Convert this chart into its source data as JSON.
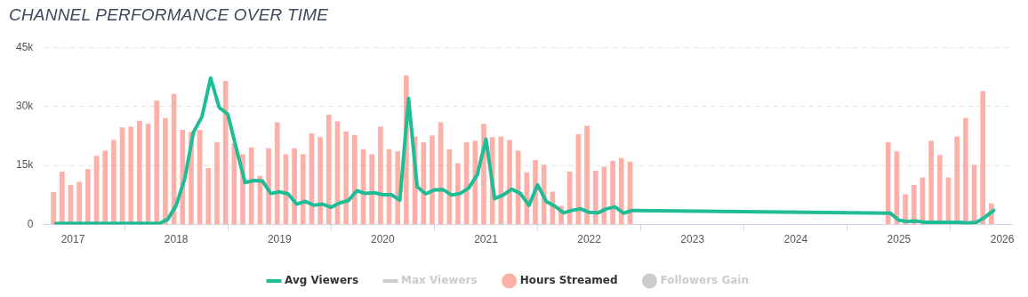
{
  "chart_data": {
    "type": "bar",
    "title": "CHANNEL PERFORMANCE OVER TIME",
    "xlim": [
      "2016-09-20",
      "2026-02-05"
    ],
    "xticks": [
      "2017",
      "2018",
      "2019",
      "2020",
      "2021",
      "2022",
      "2023",
      "2024",
      "2025",
      "2026"
    ],
    "ylim": [
      0,
      45000
    ],
    "yticks": [
      0,
      {
        "value": 15000,
        "label": "15k"
      },
      {
        "value": 30000,
        "label": "30k"
      },
      {
        "value": 45000,
        "label": "45k"
      }
    ],
    "grid": "y",
    "legend": "bottom",
    "marker": "none",
    "line_style": "solid",
    "series": [
      {
        "name": "Avg Viewers",
        "type": "line",
        "color": "#1fbc95",
        "x": [
          "2016-11",
          "2016-12",
          "2017-01",
          "2017-02",
          "2017-03",
          "2017-04",
          "2017-05",
          "2017-06",
          "2017-07",
          "2017-08",
          "2017-09",
          "2017-10",
          "2017-11",
          "2017-12",
          "2018-01",
          "2018-02",
          "2018-03",
          "2018-04",
          "2018-05",
          "2018-06",
          "2018-07",
          "2018-08",
          "2018-09",
          "2018-10",
          "2018-11",
          "2018-12",
          "2019-01",
          "2019-02",
          "2019-03",
          "2019-04",
          "2019-05",
          "2019-06",
          "2019-07",
          "2019-08",
          "2019-09",
          "2019-10",
          "2019-11",
          "2019-12",
          "2020-01",
          "2020-02",
          "2020-03",
          "2020-04",
          "2020-05",
          "2020-06",
          "2020-07",
          "2020-08",
          "2020-09",
          "2020-10",
          "2020-11",
          "2020-12",
          "2021-01",
          "2021-02",
          "2021-03",
          "2021-04",
          "2021-05",
          "2021-06",
          "2021-07",
          "2021-08",
          "2021-09",
          "2021-10",
          "2021-11",
          "2021-12",
          "2022-01",
          "2022-02",
          "2022-03",
          "2022-04",
          "2022-05",
          "2022-06",
          "2024-12",
          "2025-01",
          "2025-02",
          "2025-03",
          "2025-04",
          "2025-05",
          "2025-06",
          "2025-07",
          "2025-08",
          "2025-09",
          "2025-10",
          "2025-11",
          "2025-12"
        ],
        "values": [
          300,
          300,
          300,
          300,
          300,
          300,
          300,
          300,
          300,
          300,
          300,
          300,
          300,
          1300,
          4900,
          11700,
          23400,
          27400,
          37200,
          29700,
          28000,
          19200,
          10700,
          11200,
          11100,
          7900,
          8300,
          7800,
          5200,
          5900,
          4900,
          5200,
          4400,
          5500,
          6100,
          8600,
          7900,
          8100,
          7600,
          7600,
          6200,
          32000,
          9600,
          7800,
          8800,
          8900,
          7500,
          7900,
          9300,
          12700,
          21700,
          6600,
          7500,
          9000,
          7900,
          4900,
          10100,
          5900,
          4700,
          3000,
          3600,
          4000,
          3100,
          3000,
          4000,
          4500,
          2900,
          3600,
          2900,
          1100,
          800,
          900,
          600,
          600,
          600,
          600,
          600,
          400,
          600,
          1900,
          3600
        ]
      },
      {
        "name": "Max Viewers",
        "type": "line",
        "color": "#cccccc"
      },
      {
        "name": "Hours Streamed",
        "color": "#fdb0a7",
        "x": [
          "2016-11",
          "2016-12",
          "2017-01",
          "2017-02",
          "2017-03",
          "2017-04",
          "2017-05",
          "2017-06",
          "2017-07",
          "2017-08",
          "2017-09",
          "2017-10",
          "2017-11",
          "2017-12",
          "2018-01",
          "2018-02",
          "2018-03",
          "2018-04",
          "2018-05",
          "2018-06",
          "2018-07",
          "2018-08",
          "2018-09",
          "2018-10",
          "2018-11",
          "2018-12",
          "2019-01",
          "2019-02",
          "2019-03",
          "2019-04",
          "2019-05",
          "2019-06",
          "2019-07",
          "2019-08",
          "2019-09",
          "2019-10",
          "2019-11",
          "2019-12",
          "2020-01",
          "2020-02",
          "2020-03",
          "2020-04",
          "2020-05",
          "2020-06",
          "2020-07",
          "2020-08",
          "2020-09",
          "2020-10",
          "2020-11",
          "2020-12",
          "2021-01",
          "2021-02",
          "2021-03",
          "2021-04",
          "2021-05",
          "2021-06",
          "2021-07",
          "2021-08",
          "2021-09",
          "2021-10",
          "2021-11",
          "2021-12",
          "2022-01",
          "2022-02",
          "2022-03",
          "2022-04",
          "2022-05",
          "2022-06",
          "2024-12",
          "2025-01",
          "2025-02",
          "2025-03",
          "2025-04",
          "2025-05",
          "2025-06",
          "2025-07",
          "2025-08",
          "2025-09",
          "2025-10",
          "2025-11",
          "2025-12"
        ],
        "values": [
          8200,
          13400,
          10000,
          10800,
          14000,
          17400,
          18700,
          21400,
          24600,
          24800,
          26300,
          25500,
          31400,
          27000,
          33100,
          24000,
          23500,
          24000,
          14300,
          20900,
          36400,
          20600,
          17800,
          19500,
          12300,
          19300,
          25900,
          17800,
          19300,
          17800,
          23100,
          22100,
          27800,
          26100,
          23600,
          22700,
          19100,
          17800,
          24800,
          19100,
          18500,
          37800,
          22300,
          20800,
          22500,
          25900,
          19000,
          15500,
          20800,
          21200,
          25500,
          22100,
          22300,
          21400,
          18700,
          13200,
          16300,
          15100,
          8300,
          4700,
          13400,
          22900,
          25000,
          13600,
          14600,
          16100,
          16800,
          15900,
          20800,
          18500,
          7600,
          10000,
          11900,
          21200,
          17600,
          11900,
          22300,
          27000,
          15100,
          33800,
          5300
        ]
      },
      {
        "name": "Followers Gain",
        "color": "#cccccc"
      }
    ]
  }
}
